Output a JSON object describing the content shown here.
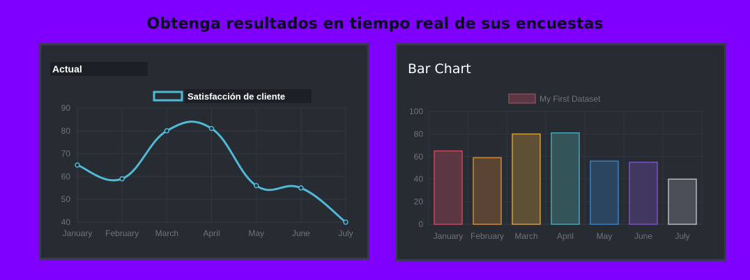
{
  "page": {
    "heading": "Obtenga resultados en tiempo real de sus encuestas"
  },
  "chart_data": [
    {
      "type": "line",
      "title": "Actual",
      "categories": [
        "January",
        "February",
        "March",
        "April",
        "May",
        "June",
        "July"
      ],
      "series": [
        {
          "name": "Satisfacción de cliente",
          "values": [
            65,
            59,
            80,
            81,
            56,
            55,
            40
          ]
        }
      ],
      "ylim": [
        40,
        90
      ],
      "yticks": [
        40,
        50,
        60,
        70,
        80,
        90
      ],
      "grid": true,
      "legend": "top-center",
      "color": "#4fb9d6"
    },
    {
      "type": "bar",
      "title": "Bar Chart",
      "categories": [
        "January",
        "February",
        "March",
        "April",
        "May",
        "June",
        "July"
      ],
      "series": [
        {
          "name": "My First Dataset",
          "values": [
            65,
            59,
            80,
            81,
            56,
            55,
            40
          ]
        }
      ],
      "ylim": [
        0,
        100
      ],
      "yticks": [
        0,
        20,
        40,
        60,
        80,
        100
      ],
      "grid": true,
      "legend": "top-center",
      "bar_fills": [
        "#5a3742",
        "#5a4533",
        "#5e5034",
        "#34545a",
        "#2b4560",
        "#403861",
        "#4a4e56"
      ],
      "bar_strokes": [
        "#c8485a",
        "#d08a3a",
        "#d0a040",
        "#48a8b8",
        "#3880c8",
        "#7a50c8",
        "#b8b8c0"
      ],
      "legend_fill": "#5a3742",
      "legend_stroke": "#8a4a5a"
    }
  ]
}
